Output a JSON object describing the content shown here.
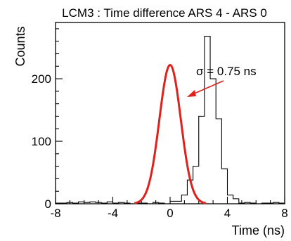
{
  "chart_data": {
    "type": "histogram",
    "title": "LCM3 : Time difference ARS 4 - ARS 0",
    "xlabel": "Time (ns)",
    "ylabel": "Counts",
    "xlim": [
      -8,
      8
    ],
    "ylim": [
      0,
      290
    ],
    "xticks": [
      -8,
      -4,
      0,
      4,
      8
    ],
    "yticks": [
      0,
      100,
      200
    ],
    "bin_width": 0.4,
    "bin_edges_start": -8,
    "counts": [
      1,
      1,
      2,
      1,
      3,
      2,
      3,
      2,
      1,
      3,
      1,
      2,
      1,
      0,
      1,
      1,
      0,
      2,
      1,
      0,
      4,
      4,
      14,
      38,
      60,
      140,
      268,
      200,
      136,
      56,
      14,
      8,
      1,
      2,
      1,
      0,
      1,
      1,
      2,
      1,
      0
    ],
    "fit": {
      "type": "gaussian",
      "amplitude": 222,
      "mean": 0.0,
      "sigma": 0.75,
      "color": "#e0201b",
      "label": "σ = 0.75 ns"
    },
    "annotation": {
      "text": "σ = 0.75 ns",
      "arrow_color": "#e0201b"
    }
  }
}
